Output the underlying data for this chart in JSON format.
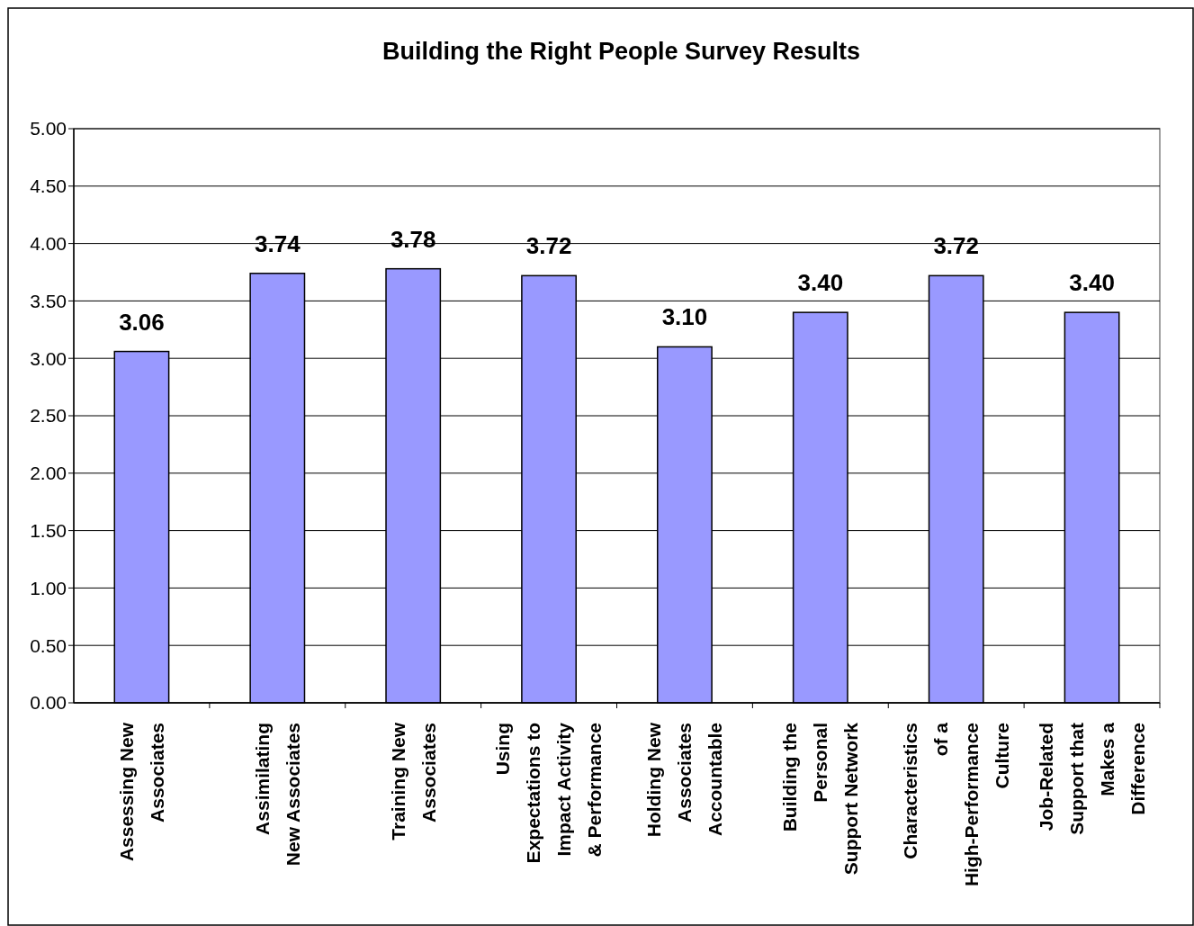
{
  "chart_data": {
    "type": "bar",
    "title": "Building the Right People Survey Results",
    "categories": [
      "Assessing New Associates",
      "Assimilating New Associates",
      "Training New Associates",
      "Using Expectations to Impact Activity & Performance",
      "Holding New Associates Accountable",
      "Building the Personal Support Network",
      "Characteristics of a High-Performance Culture",
      "Job-Related Support that Makes a Difference"
    ],
    "values": [
      3.06,
      3.74,
      3.78,
      3.72,
      3.1,
      3.4,
      3.72,
      3.4
    ],
    "value_labels": [
      "3.06",
      "3.74",
      "3.78",
      "3.72",
      "3.10",
      "3.40",
      "3.72",
      "3.40"
    ],
    "color": "#9999ff",
    "ylim": [
      0,
      5
    ],
    "yticks": [
      {
        "value": 0,
        "label": "0.00"
      },
      {
        "value": 0.5,
        "label": "0.50"
      },
      {
        "value": 1,
        "label": "1.00"
      },
      {
        "value": 1.5,
        "label": "1.50"
      },
      {
        "value": 2,
        "label": "2.00"
      },
      {
        "value": 2.5,
        "label": "2.50"
      },
      {
        "value": 3,
        "label": "3.00"
      },
      {
        "value": 3.5,
        "label": "3.50"
      },
      {
        "value": 4,
        "label": "4.00"
      },
      {
        "value": 4.5,
        "label": "4.50"
      },
      {
        "value": 5,
        "label": "5.00"
      }
    ],
    "grid": "y"
  }
}
